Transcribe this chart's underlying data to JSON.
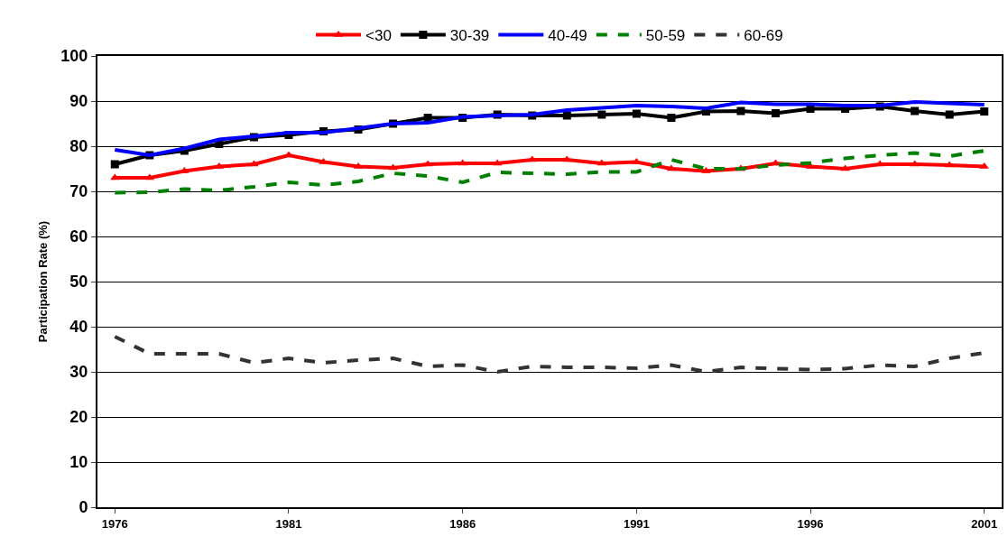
{
  "chart_data": {
    "type": "line",
    "ylabel": "Participation Rate (%)",
    "x": [
      1976,
      1977,
      1978,
      1979,
      1980,
      1981,
      1982,
      1983,
      1984,
      1985,
      1986,
      1987,
      1988,
      1989,
      1990,
      1991,
      1992,
      1993,
      1994,
      1995,
      1996,
      1997,
      1998,
      1999,
      2000,
      2001
    ],
    "xlim": [
      1975.5,
      2001.5
    ],
    "xticks": [
      1976,
      1981,
      1986,
      1991,
      1996,
      2001
    ],
    "ylim": [
      0,
      100
    ],
    "yticks": [
      0,
      10,
      20,
      30,
      40,
      50,
      60,
      70,
      80,
      90,
      100
    ],
    "grid": "y",
    "legend": "top",
    "series": [
      {
        "name": "<30",
        "color": "#ff0000",
        "marker": "triangle",
        "line_style": "solid",
        "values": [
          73,
          73,
          74.5,
          75.5,
          76,
          78,
          76.5,
          75.5,
          75.2,
          76,
          76.2,
          76.2,
          77,
          77,
          76.2,
          76.5,
          75,
          74.5,
          75,
          76.2,
          75.5,
          75,
          76,
          76,
          75.8,
          75.5
        ]
      },
      {
        "name": "30-39",
        "color": "#000000",
        "marker": "square",
        "line_style": "solid",
        "values": [
          76,
          78,
          79,
          80.5,
          82,
          82.5,
          83.3,
          83.7,
          85,
          86.3,
          86.3,
          87,
          86.8,
          86.8,
          87,
          87.2,
          86.3,
          87.7,
          87.8,
          87.3,
          88.3,
          88.3,
          88.8,
          87.8,
          87,
          87.7
        ]
      },
      {
        "name": "40-49",
        "color": "#0000ff",
        "marker": "none",
        "line_style": "solid",
        "values": [
          79.2,
          78,
          79.5,
          81.5,
          82.2,
          83,
          83,
          84,
          85,
          85.2,
          86.5,
          86.8,
          87,
          88,
          88.5,
          89,
          88.8,
          88.4,
          89.7,
          89.3,
          89.3,
          89,
          89,
          89.8,
          89.5,
          89.2
        ]
      },
      {
        "name": "50-59",
        "color": "#008000",
        "marker": "none",
        "line_style": "dashed",
        "values": [
          69.7,
          69.8,
          70.5,
          70.2,
          71,
          72,
          71.4,
          72.2,
          74,
          73.4,
          72,
          74.2,
          74,
          73.8,
          74.3,
          74.3,
          77,
          75,
          75,
          75.8,
          76.3,
          77.3,
          78,
          78.5,
          77.8,
          79
        ]
      },
      {
        "name": "60-69",
        "color": "#333333",
        "marker": "none",
        "line_style": "dashed",
        "values": [
          37.8,
          34,
          34,
          34,
          32,
          33,
          32,
          32.6,
          33,
          31.2,
          31.5,
          30,
          31.2,
          31,
          31,
          30.8,
          31.5,
          30,
          31,
          30.7,
          30.5,
          30.7,
          31.5,
          31.2,
          33,
          34.2
        ]
      }
    ]
  }
}
